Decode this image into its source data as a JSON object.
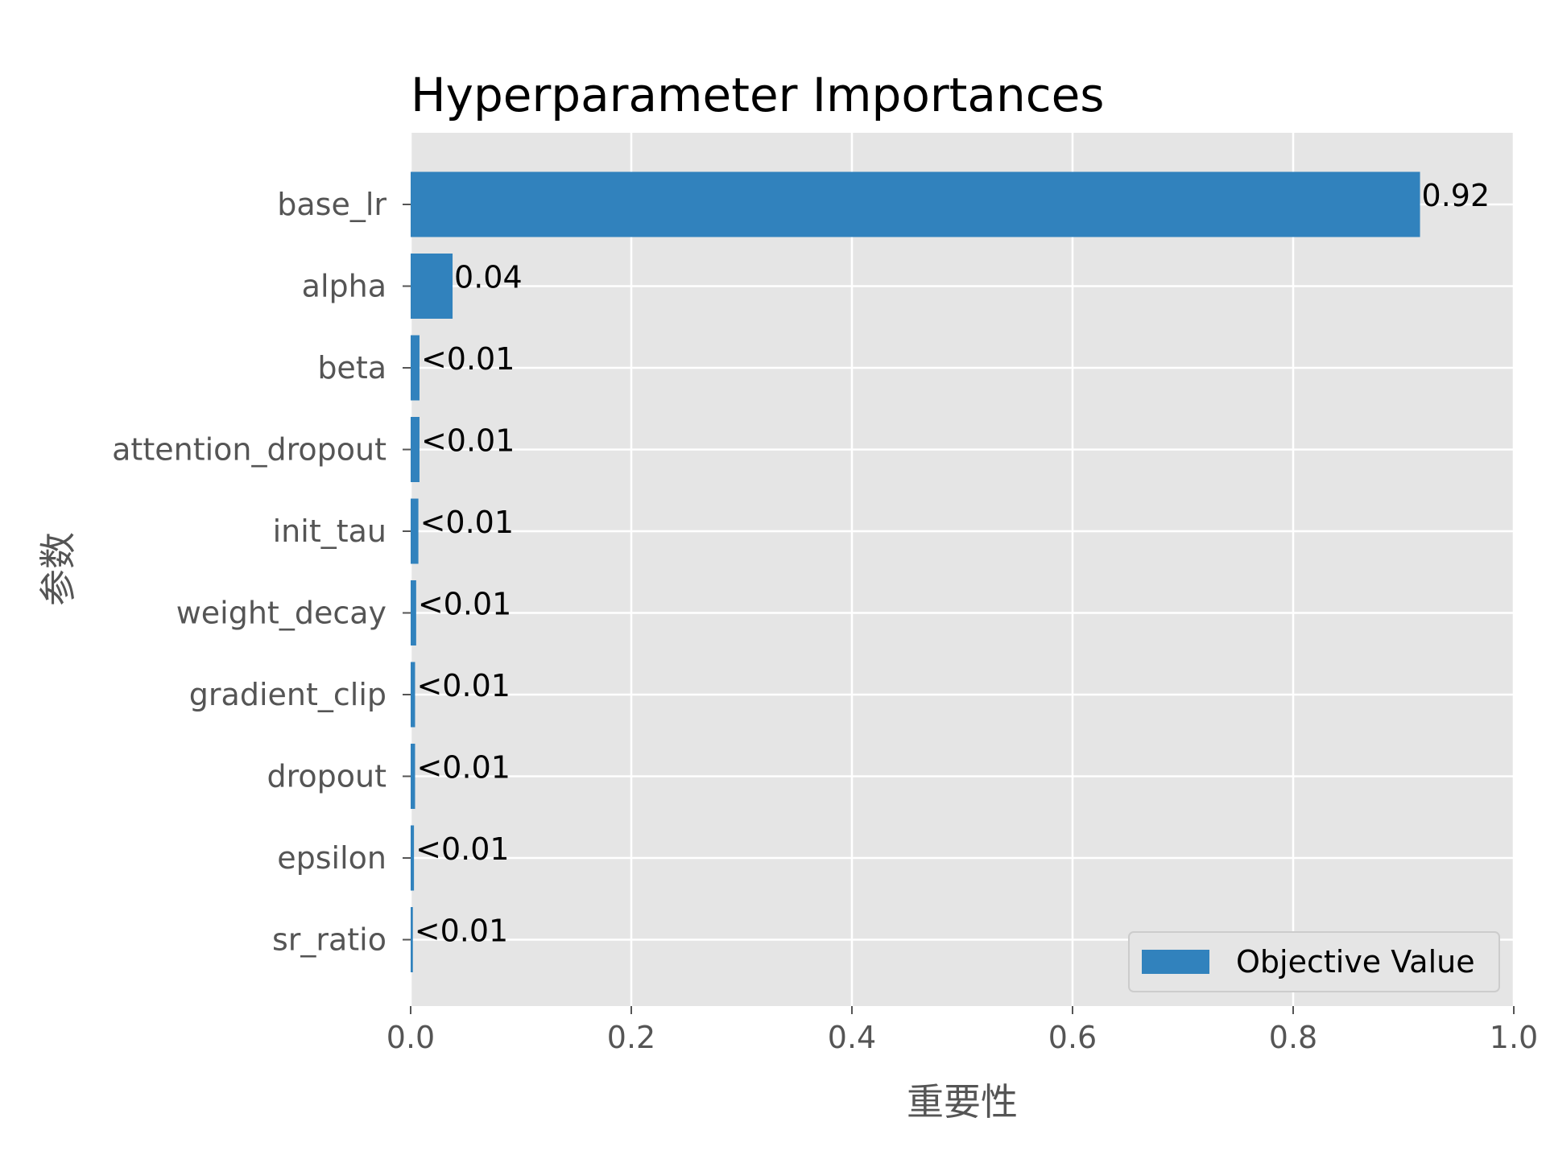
{
  "chart_data": {
    "type": "bar",
    "orientation": "horizontal",
    "title": "Hyperparameter Importances",
    "xlabel": "重要性",
    "ylabel": "参数",
    "xlim": [
      0,
      1.0
    ],
    "x_ticks": [
      "0.0",
      "0.2",
      "0.4",
      "0.6",
      "0.8",
      "1.0"
    ],
    "grid": true,
    "legend_position": "lower-right",
    "bar_color": "#3182bd",
    "categories": [
      "base_lr",
      "alpha",
      "beta",
      "attention_dropout",
      "init_tau",
      "weight_decay",
      "gradient_clip",
      "dropout",
      "epsilon",
      "sr_ratio"
    ],
    "series": [
      {
        "name": "Objective Value",
        "values": [
          0.915,
          0.038,
          0.008,
          0.008,
          0.007,
          0.005,
          0.004,
          0.004,
          0.003,
          0.002
        ],
        "labels": [
          "0.92",
          "0.04",
          "<0.01",
          "<0.01",
          "<0.01",
          "<0.01",
          "<0.01",
          "<0.01",
          "<0.01",
          "<0.01"
        ]
      }
    ]
  }
}
